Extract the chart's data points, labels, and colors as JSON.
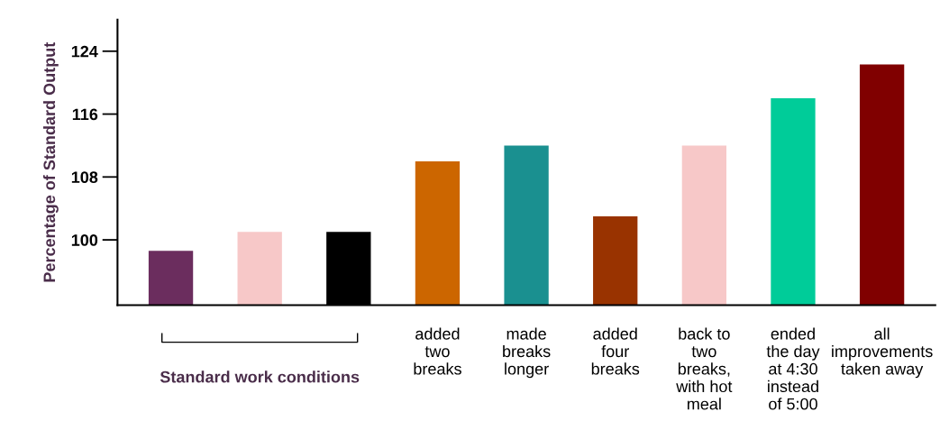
{
  "chart_data": {
    "type": "bar",
    "ylabel": "Percentage of Standard Output",
    "categories": [
      null,
      null,
      null,
      "added\ntwo\nbreaks",
      "made\nbreaks\nlonger",
      "added\nfour\nbreaks",
      "back to\ntwo\nbreaks,\nwith hot\nmeal",
      "ended\nthe day\nat 4:30\ninstead\nof 5:00",
      "all\nimprovements\ntaken away"
    ],
    "values": [
      98.6,
      101,
      101,
      110,
      112,
      103,
      112,
      118,
      122.3
    ],
    "colors": [
      "#6b2d5e",
      "#f7c8c8",
      "#000000",
      "#cc6600",
      "#1a9090",
      "#993300",
      "#f7c8c8",
      "#00cc99",
      "#800000"
    ],
    "ylim": [
      91.7,
      128
    ],
    "yticks": [
      100,
      108,
      116,
      124
    ],
    "annotations": [
      "Standard work conditions"
    ],
    "grid": false
  }
}
